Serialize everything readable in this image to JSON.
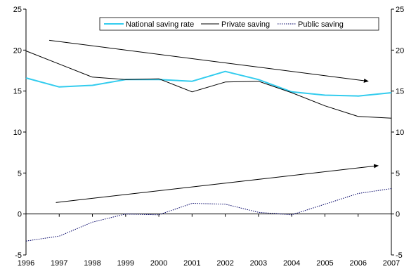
{
  "chart_data": {
    "type": "line",
    "title": "",
    "xlabel": "",
    "ylabel": "",
    "x": [
      1996,
      1997,
      1998,
      1999,
      2000,
      2001,
      2002,
      2003,
      2004,
      2005,
      2006,
      2007
    ],
    "xticks": [
      "1996",
      "1997",
      "1998",
      "1999",
      "2000",
      "2001",
      "2002",
      "2003",
      "2004",
      "2005",
      "2006",
      "2007"
    ],
    "ylim": [
      -5,
      25
    ],
    "yticks": [
      "-5",
      "0",
      "5",
      "10",
      "15",
      "20",
      "25"
    ],
    "grid": false,
    "legend_position": "top-right",
    "series": [
      {
        "name": "National saving rate",
        "color": "#33ccee",
        "style": "solid",
        "values": [
          16.6,
          15.5,
          15.7,
          16.4,
          16.4,
          16.2,
          17.4,
          16.4,
          14.9,
          14.5,
          14.4,
          14.8
        ]
      },
      {
        "name": "Private saving",
        "color": "#000000",
        "style": "solid",
        "values": [
          19.9,
          18.3,
          16.7,
          16.4,
          16.5,
          14.9,
          16.1,
          16.2,
          14.8,
          13.2,
          11.9,
          11.7
        ]
      },
      {
        "name": "Public saving",
        "color": "#000066",
        "style": "dotted",
        "values": [
          -3.3,
          -2.7,
          -1.0,
          0.0,
          -0.1,
          1.3,
          1.2,
          0.2,
          -0.1,
          1.2,
          2.5,
          3.1
        ]
      }
    ],
    "annotations": [
      {
        "type": "arrow",
        "from": [
          1996.7,
          21.2
        ],
        "to": [
          2006.3,
          16.2
        ]
      },
      {
        "type": "arrow",
        "from": [
          1996.9,
          1.4
        ],
        "to": [
          2006.6,
          5.9
        ]
      }
    ]
  }
}
